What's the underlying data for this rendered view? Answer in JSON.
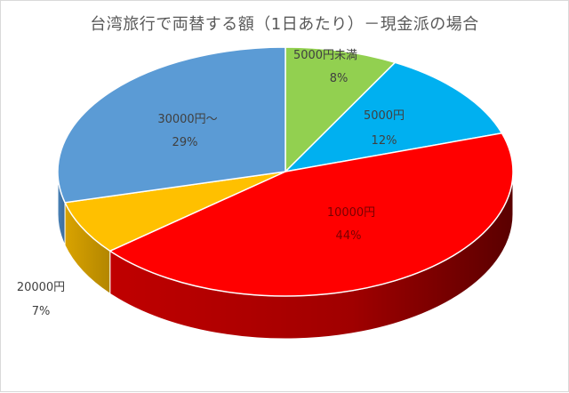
{
  "chart_data": {
    "type": "pie",
    "title": "台湾旅行で両替する額（1日あたり）－現金派の場合",
    "three_d": true,
    "slices": [
      {
        "label": "5000円未満",
        "value": 8,
        "percent_label": "8%",
        "color": "#92D050"
      },
      {
        "label": "5000円",
        "value": 12,
        "percent_label": "12%",
        "color": "#00B0F0"
      },
      {
        "label": "10000円",
        "value": 44,
        "percent_label": "44%",
        "color": "#FF0000"
      },
      {
        "label": "20000円",
        "value": 7,
        "percent_label": "7%",
        "color": "#FFC000"
      },
      {
        "label": "30000円～",
        "value": 29,
        "percent_label": "29%",
        "color": "#5B9BD5"
      }
    ]
  }
}
